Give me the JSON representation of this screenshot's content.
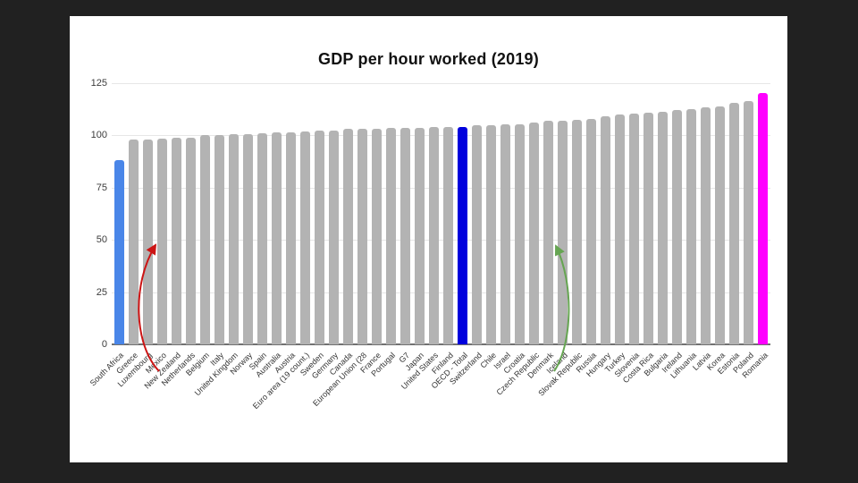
{
  "frame": {
    "background_color": "#212121",
    "card_color": "#ffffff"
  },
  "chart_data": {
    "type": "bar",
    "title": "GDP per hour worked (2019)",
    "xlabel": "",
    "ylabel": "",
    "ylim": [
      0,
      125
    ],
    "yticks": [
      0,
      25,
      50,
      75,
      100,
      125
    ],
    "grid": true,
    "legend": "none",
    "categories": [
      "South Africa",
      "Greece",
      "Luxembourg",
      "Mexico",
      "New Zealand",
      "Netherlands",
      "Belgium",
      "Italy",
      "United Kingdom",
      "Norway",
      "Spain",
      "Australia",
      "Austria",
      "Euro area (19 count.)",
      "Sweden",
      "Germany",
      "Canada",
      "European Union (28",
      "France",
      "Portugal",
      "G7",
      "Japan",
      "United States",
      "Finland",
      "OECD - Total",
      "Switzerland",
      "Chile",
      "Israel",
      "Croatia",
      "Czech Republic",
      "Denmark",
      "Iceland",
      "Slovak Republic",
      "Russia",
      "Hungary",
      "Turkey",
      "Slovenia",
      "Costa Rica",
      "Bulgaria",
      "Ireland",
      "Lithuania",
      "Latvia",
      "Korea",
      "Estonia",
      "Poland",
      "Romania"
    ],
    "values": [
      88,
      98,
      98,
      98.5,
      99,
      99,
      100,
      100,
      100.5,
      100.5,
      101,
      101.5,
      101.5,
      102,
      102.5,
      102.5,
      103,
      103,
      103,
      103.5,
      103.5,
      103.5,
      104,
      104,
      104,
      105,
      105,
      105.5,
      105.5,
      106,
      107,
      107,
      107.5,
      108,
      109,
      110,
      110.5,
      111,
      111.5,
      112,
      112.5,
      113.5,
      114,
      115.5,
      116.5,
      120.5
    ],
    "bar_color_default": "#b3b3b3",
    "highlights": [
      {
        "category": "South Africa",
        "color": "#4a86e8"
      },
      {
        "category": "OECD - Total",
        "color": "#0000dd"
      },
      {
        "category": "Romania",
        "color": "#ff00ff"
      }
    ],
    "annotations": [
      {
        "name": "red-arrow",
        "color": "#cc1414",
        "description": "hand-drawn curved arrow pointing up toward bars near Greece/Luxembourg",
        "tail": [
          100,
          397
        ],
        "c1": [
          72,
          368
        ],
        "c2": [
          69,
          300
        ],
        "head": [
          96,
          256
        ]
      },
      {
        "name": "green-arrow",
        "color": "#66a552",
        "description": "hand-drawn curved arrow pointing up toward bars near Iceland",
        "tail": [
          542,
          397
        ],
        "c1": [
          562,
          368
        ],
        "c2": [
          565,
          300
        ],
        "head": [
          544,
          257
        ]
      }
    ]
  }
}
